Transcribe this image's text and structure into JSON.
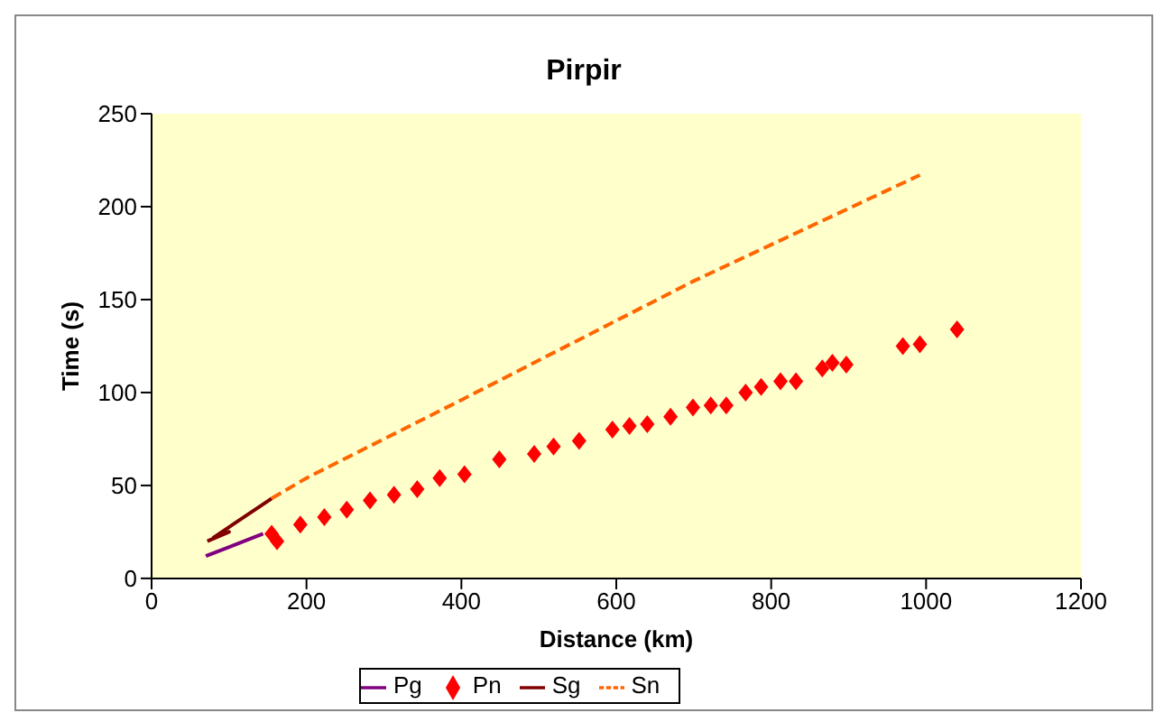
{
  "chart_data": {
    "type": "line",
    "title": "Pirpir",
    "xlabel": "Distance (km)",
    "ylabel": "Time (s)",
    "xlim": [
      0,
      1200
    ],
    "xticks": [
      0,
      200,
      400,
      600,
      800,
      1000,
      1200
    ],
    "ylim": [
      0,
      250
    ],
    "yticks": [
      0,
      50,
      100,
      150,
      200,
      250
    ],
    "grid": false,
    "legend": "bottom",
    "series": [
      {
        "name": "Pg",
        "color": "#800080",
        "line_style": "solid",
        "marker": "none",
        "x": [
          70,
          144
        ],
        "values": [
          12,
          24
        ]
      },
      {
        "name": "Pn",
        "type": "scatter",
        "color": "#ff0000",
        "marker": "diamond",
        "x": [
          155,
          162,
          192,
          223,
          252,
          282,
          313,
          343,
          372,
          404,
          449,
          494,
          519,
          552,
          595,
          617,
          640,
          670,
          699,
          722,
          742,
          767,
          787,
          812,
          832,
          866,
          879,
          897,
          970,
          992,
          1040
        ],
        "values": [
          24,
          20,
          29,
          33,
          37,
          42,
          45,
          48,
          54,
          56,
          64,
          67,
          71,
          74,
          80,
          82,
          83,
          87,
          92,
          93,
          93,
          100,
          103,
          106,
          106,
          113,
          116,
          115,
          125,
          126,
          134
        ]
      },
      {
        "name": "Sg",
        "color": "#800000",
        "line_style": "solid",
        "marker": "none",
        "x": [
          72,
          100,
          80,
          155
        ],
        "values": [
          20,
          25,
          22,
          43
        ]
      },
      {
        "name": "Sn",
        "color": "#ff6600",
        "line_style": "dashed",
        "marker": "none",
        "x": [
          155,
          200,
          400,
          700,
          992
        ],
        "values": [
          43,
          54,
          96,
          160,
          217
        ]
      }
    ]
  }
}
